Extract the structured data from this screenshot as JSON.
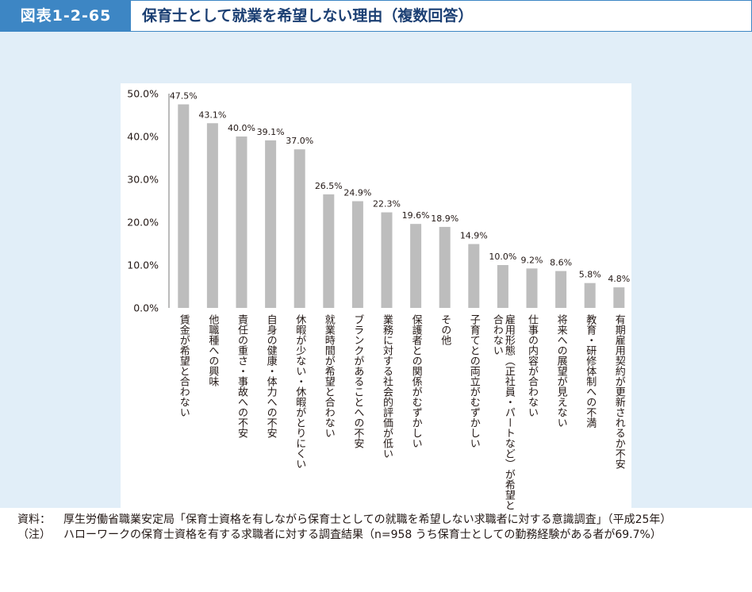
{
  "header": {
    "figure_label": "図表1-2-65",
    "title": "保育士として就業を希望しない理由（複数回答）"
  },
  "chart_data": {
    "type": "bar",
    "title": "",
    "xlabel": "",
    "ylabel": "",
    "ylim": [
      0,
      50
    ],
    "yticks": [
      "0.0%",
      "10.0%",
      "20.0%",
      "30.0%",
      "40.0%",
      "50.0%"
    ],
    "grid": false,
    "bar_color": "#bdbdbd",
    "categories": [
      "賃金が希望と合わない",
      "他職種への興味",
      "責任の重さ・事故への不安",
      "自身の健康・体力への不安",
      "休暇が少ない・休暇がとりにくい",
      "就業時間が希望と合わない",
      "ブランクがあることへの不安",
      "業務に対する社会的評価が低い",
      "保護者との関係がむずかしい",
      "その他",
      "子育てとの両立がむずかしい",
      "雇用形態（正社員・パートなど）が希望と合わない",
      "仕事の内容が合わない",
      "将来への展望が見えない",
      "教育・研修体制への不満",
      "有期雇用契約が更新されるか不安"
    ],
    "values": [
      47.5,
      43.1,
      40.0,
      39.1,
      37.0,
      26.5,
      24.9,
      22.3,
      19.6,
      18.9,
      14.9,
      10.0,
      9.2,
      8.6,
      5.8,
      4.8
    ],
    "value_labels": [
      "47.5%",
      "43.1%",
      "40.0%",
      "39.1%",
      "37.0%",
      "26.5%",
      "24.9%",
      "22.3%",
      "19.6%",
      "18.9%",
      "14.9%",
      "10.0%",
      "9.2%",
      "8.6%",
      "5.8%",
      "4.8%"
    ],
    "category_lines": [
      [
        "賃金が希望と合わない"
      ],
      [
        "他職種への興味"
      ],
      [
        "責任の重さ・事故への不安"
      ],
      [
        "自身の健康・体力への不安"
      ],
      [
        "休暇が少ない・休暇がとりにくい"
      ],
      [
        "就業時間が希望と合わない"
      ],
      [
        "ブランクがあることへの不安"
      ],
      [
        "業務に対する社会的評価が低い"
      ],
      [
        "保護者との関係がむずかしい"
      ],
      [
        "その他"
      ],
      [
        "子育てとの両立がむずかしい"
      ],
      [
        "雇用形態（正社員・パートなど）が希望と",
        "合わない"
      ],
      [
        "仕事の内容が合わない"
      ],
      [
        "将来への展望が見えない"
      ],
      [
        "教育・研修体制への不満"
      ],
      [
        "有期雇用契約が更新されるか不安"
      ]
    ]
  },
  "notes": {
    "source_label": "資料：",
    "source_text": "厚生労働省職業安定局「保育士資格を有しながら保育士としての就職を希望しない求職者に対する意識調査」（平成25年）",
    "note_label": "（注）",
    "note_text": "ハローワークの保育士資格を有する求職者に対する調査結果（n=958 うち保育士としての勤務経験がある者が69.7%）"
  }
}
